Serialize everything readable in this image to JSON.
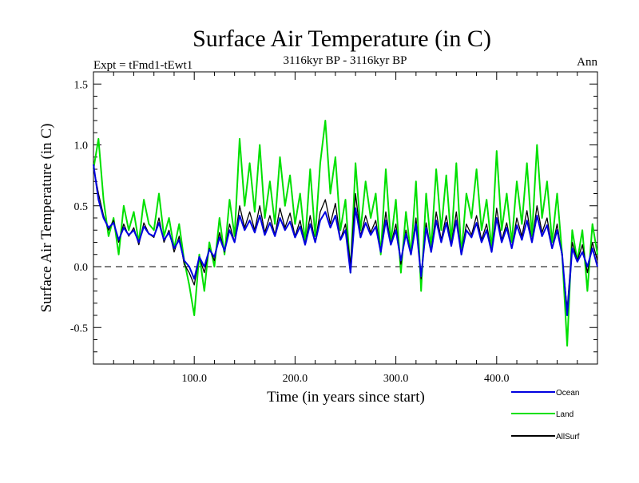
{
  "chart_data": {
    "type": "line",
    "title": "Surface Air Temperature (in C)",
    "subtitle": "3116kyr BP - 3116kyr BP",
    "left_label": "Expt = tFmd1-tEwt1",
    "right_label": "Ann",
    "xlabel": "Time (in years since start)",
    "ylabel": "Surface Air Temperature (in C)",
    "xlim": [
      0,
      500
    ],
    "ylim": [
      -0.8,
      1.6
    ],
    "x_ticks": [
      {
        "value": 100,
        "label": "100.0"
      },
      {
        "value": 200,
        "label": "200.0"
      },
      {
        "value": 300,
        "label": "300.0"
      },
      {
        "value": 400,
        "label": "400.0"
      }
    ],
    "y_ticks": [
      {
        "value": -0.5,
        "label": "-0.5"
      },
      {
        "value": 0.0,
        "label": "0.0"
      },
      {
        "value": 0.5,
        "label": "0.5"
      },
      {
        "value": 1.0,
        "label": "1.0"
      },
      {
        "value": 1.5,
        "label": "1.5"
      }
    ],
    "reference_line": {
      "y": 0.0,
      "style": "dashed"
    },
    "series": [
      {
        "name": "Land",
        "color": "#00e000",
        "x": [
          0,
          5,
          10,
          15,
          20,
          25,
          30,
          35,
          40,
          45,
          50,
          55,
          60,
          65,
          70,
          75,
          80,
          85,
          90,
          95,
          100,
          105,
          110,
          115,
          120,
          125,
          130,
          135,
          140,
          145,
          150,
          155,
          160,
          165,
          170,
          175,
          180,
          185,
          190,
          195,
          200,
          205,
          210,
          215,
          220,
          225,
          230,
          235,
          240,
          245,
          250,
          255,
          260,
          265,
          270,
          275,
          280,
          285,
          290,
          295,
          300,
          305,
          310,
          315,
          320,
          325,
          330,
          335,
          340,
          345,
          350,
          355,
          360,
          365,
          370,
          375,
          380,
          385,
          390,
          395,
          400,
          405,
          410,
          415,
          420,
          425,
          430,
          435,
          440,
          445,
          450,
          455,
          460,
          465,
          470,
          475,
          480,
          485,
          490,
          495,
          500
        ],
        "values": [
          0.8,
          1.05,
          0.55,
          0.25,
          0.4,
          0.1,
          0.5,
          0.3,
          0.45,
          0.2,
          0.55,
          0.35,
          0.3,
          0.6,
          0.25,
          0.4,
          0.15,
          0.35,
          0.05,
          -0.15,
          -0.4,
          0.1,
          -0.2,
          0.2,
          0.0,
          0.4,
          0.1,
          0.55,
          0.25,
          1.05,
          0.5,
          0.85,
          0.45,
          1.0,
          0.4,
          0.7,
          0.35,
          0.9,
          0.5,
          0.75,
          0.35,
          0.6,
          0.2,
          0.8,
          0.25,
          0.85,
          1.2,
          0.6,
          0.9,
          0.3,
          0.55,
          -0.05,
          0.85,
          0.3,
          0.7,
          0.4,
          0.6,
          0.1,
          0.8,
          0.2,
          0.55,
          -0.05,
          0.45,
          0.1,
          0.7,
          -0.2,
          0.6,
          0.15,
          0.8,
          0.3,
          0.75,
          0.2,
          0.85,
          0.1,
          0.6,
          0.4,
          0.8,
          0.3,
          0.55,
          0.15,
          0.95,
          0.3,
          0.6,
          0.2,
          0.7,
          0.35,
          0.85,
          0.25,
          1.0,
          0.4,
          0.7,
          0.2,
          0.6,
          0.1,
          -0.65,
          0.3,
          0.05,
          0.3,
          -0.2,
          0.35,
          0.1
        ]
      },
      {
        "name": "AllSurf",
        "color": "#000000",
        "x": [
          0,
          5,
          10,
          15,
          20,
          25,
          30,
          35,
          40,
          45,
          50,
          55,
          60,
          65,
          70,
          75,
          80,
          85,
          90,
          95,
          100,
          105,
          110,
          115,
          120,
          125,
          130,
          135,
          140,
          145,
          150,
          155,
          160,
          165,
          170,
          175,
          180,
          185,
          190,
          195,
          200,
          205,
          210,
          215,
          220,
          225,
          230,
          235,
          240,
          245,
          250,
          255,
          260,
          265,
          270,
          275,
          280,
          285,
          290,
          295,
          300,
          305,
          310,
          315,
          320,
          325,
          330,
          335,
          340,
          345,
          350,
          355,
          360,
          365,
          370,
          375,
          380,
          385,
          390,
          395,
          400,
          405,
          410,
          415,
          420,
          425,
          430,
          435,
          440,
          445,
          450,
          455,
          460,
          465,
          470,
          475,
          480,
          485,
          490,
          495,
          500
        ],
        "values": [
          0.82,
          0.6,
          0.42,
          0.3,
          0.38,
          0.2,
          0.35,
          0.25,
          0.32,
          0.18,
          0.36,
          0.27,
          0.24,
          0.4,
          0.2,
          0.3,
          0.12,
          0.25,
          0.02,
          -0.05,
          -0.15,
          0.08,
          -0.05,
          0.15,
          0.05,
          0.28,
          0.12,
          0.35,
          0.2,
          0.5,
          0.32,
          0.45,
          0.3,
          0.5,
          0.28,
          0.42,
          0.26,
          0.48,
          0.32,
          0.44,
          0.25,
          0.38,
          0.18,
          0.42,
          0.2,
          0.45,
          0.55,
          0.35,
          0.52,
          0.22,
          0.35,
          0.02,
          0.6,
          0.25,
          0.42,
          0.28,
          0.38,
          0.12,
          0.45,
          0.18,
          0.35,
          0.02,
          0.3,
          0.1,
          0.4,
          -0.1,
          0.36,
          0.12,
          0.45,
          0.22,
          0.42,
          0.18,
          0.45,
          0.1,
          0.35,
          0.26,
          0.42,
          0.22,
          0.35,
          0.12,
          0.48,
          0.22,
          0.36,
          0.15,
          0.4,
          0.25,
          0.46,
          0.2,
          0.5,
          0.28,
          0.4,
          0.15,
          0.35,
          0.08,
          -0.35,
          0.2,
          0.05,
          0.18,
          -0.05,
          0.2,
          0.05
        ]
      },
      {
        "name": "Ocean",
        "color": "#0000e0",
        "x": [
          0,
          5,
          10,
          15,
          20,
          25,
          30,
          35,
          40,
          45,
          50,
          55,
          60,
          65,
          70,
          75,
          80,
          85,
          90,
          95,
          100,
          105,
          110,
          115,
          120,
          125,
          130,
          135,
          140,
          145,
          150,
          155,
          160,
          165,
          170,
          175,
          180,
          185,
          190,
          195,
          200,
          205,
          210,
          215,
          220,
          225,
          230,
          235,
          240,
          245,
          250,
          255,
          260,
          265,
          270,
          275,
          280,
          285,
          290,
          295,
          300,
          305,
          310,
          315,
          320,
          325,
          330,
          335,
          340,
          345,
          350,
          355,
          360,
          365,
          370,
          375,
          380,
          385,
          390,
          395,
          400,
          405,
          410,
          415,
          420,
          425,
          430,
          435,
          440,
          445,
          450,
          455,
          460,
          465,
          470,
          475,
          480,
          485,
          490,
          495,
          500
        ],
        "values": [
          0.84,
          0.55,
          0.4,
          0.32,
          0.36,
          0.22,
          0.32,
          0.26,
          0.3,
          0.2,
          0.33,
          0.27,
          0.25,
          0.36,
          0.22,
          0.28,
          0.15,
          0.22,
          0.05,
          0.0,
          -0.1,
          0.08,
          0.0,
          0.14,
          0.08,
          0.24,
          0.13,
          0.3,
          0.2,
          0.42,
          0.3,
          0.38,
          0.28,
          0.42,
          0.26,
          0.36,
          0.25,
          0.4,
          0.3,
          0.37,
          0.24,
          0.33,
          0.18,
          0.35,
          0.2,
          0.38,
          0.45,
          0.32,
          0.42,
          0.22,
          0.3,
          -0.05,
          0.48,
          0.24,
          0.36,
          0.26,
          0.33,
          0.12,
          0.38,
          0.18,
          0.3,
          0.05,
          0.27,
          0.1,
          0.35,
          -0.08,
          0.32,
          0.12,
          0.38,
          0.2,
          0.36,
          0.17,
          0.38,
          0.1,
          0.3,
          0.24,
          0.36,
          0.2,
          0.3,
          0.12,
          0.4,
          0.2,
          0.32,
          0.15,
          0.34,
          0.22,
          0.38,
          0.2,
          0.42,
          0.25,
          0.34,
          0.15,
          0.3,
          0.1,
          -0.4,
          0.15,
          0.04,
          0.12,
          0.0,
          0.15,
          0.0
        ]
      }
    ],
    "legend": {
      "position": "bottom-right",
      "entries": [
        {
          "name": "Ocean",
          "color": "#0000e0"
        },
        {
          "name": "Land",
          "color": "#00e000"
        },
        {
          "name": "AllSurf",
          "color": "#000000"
        }
      ]
    }
  }
}
